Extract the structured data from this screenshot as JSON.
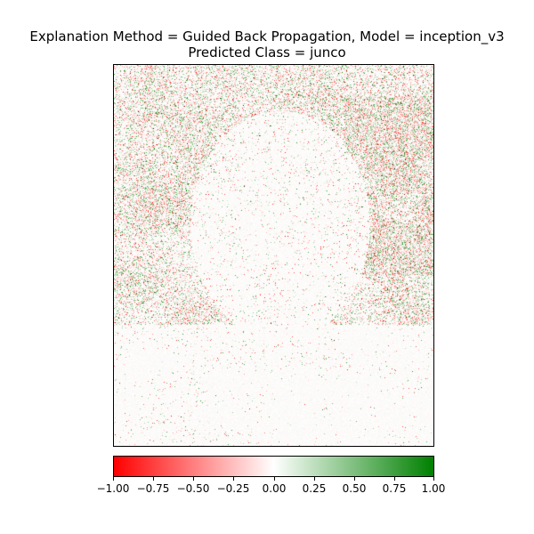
{
  "chart_data": {
    "type": "heatmap",
    "title_line1": "Explanation Method = Guided Back Propagation, Model = inception_v3",
    "title_line2": "Predicted Class = junco",
    "colorbar": {
      "min": -1.0,
      "max": 1.0,
      "colors": [
        "#ff0000",
        "#ffffff",
        "#008000"
      ],
      "ticks": [
        "−1.00",
        "−0.75",
        "−0.50",
        "−0.25",
        "0.00",
        "0.25",
        "0.50",
        "0.75",
        "1.00"
      ],
      "tick_values": [
        -1.0,
        -0.75,
        -0.5,
        -0.25,
        0.0,
        0.25,
        0.5,
        0.75,
        1.0
      ]
    },
    "axes_ticks_visible": false
  }
}
